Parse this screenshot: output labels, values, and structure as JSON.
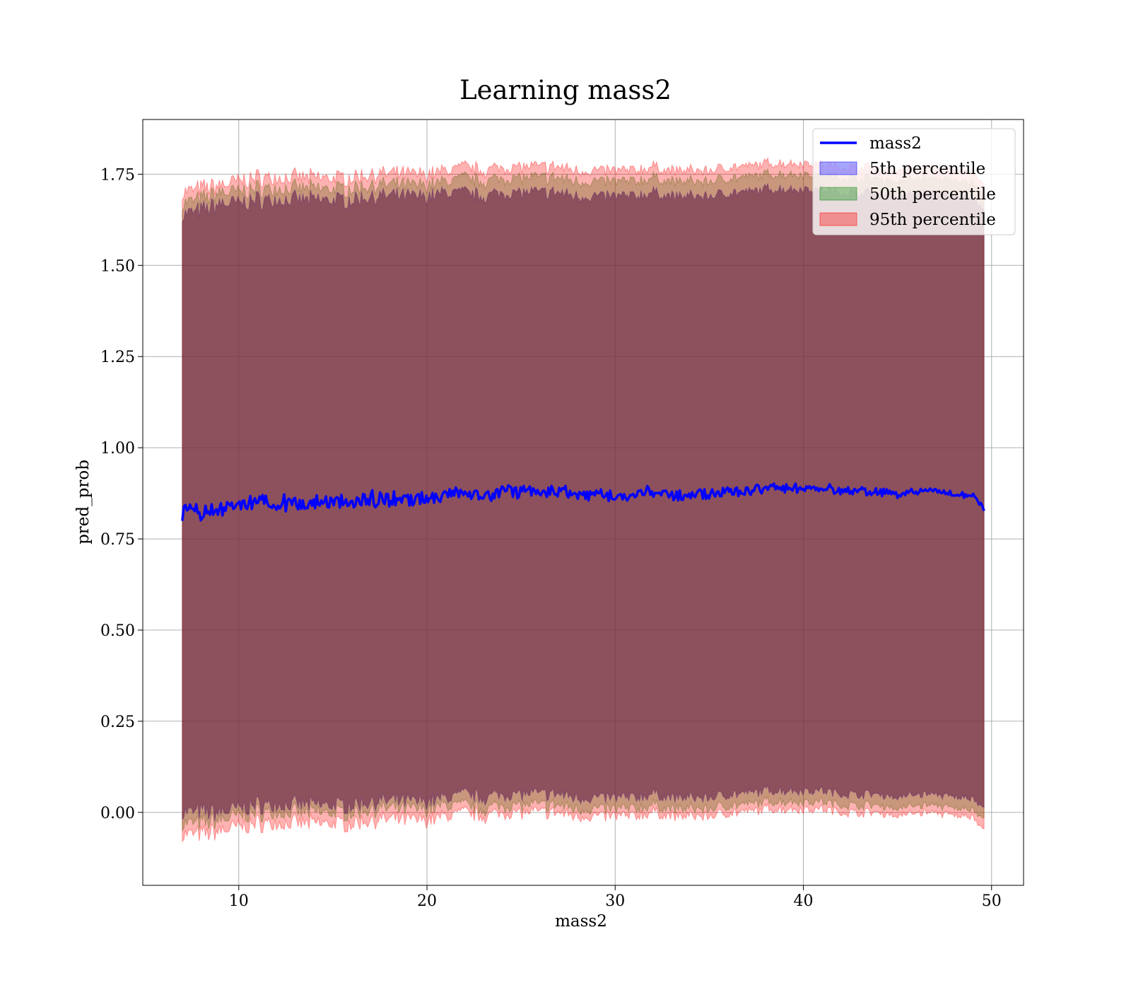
{
  "chart_data": {
    "type": "line",
    "title": "Learning mass2",
    "xlabel": "mass2",
    "ylabel": "pred_prob",
    "xlim": [
      4.9,
      51.7
    ],
    "ylim": [
      -0.2,
      1.9
    ],
    "x_ticks": [
      10,
      20,
      30,
      40,
      50
    ],
    "x_tick_labels": [
      "10",
      "20",
      "30",
      "40",
      "50"
    ],
    "y_ticks": [
      0.0,
      0.25,
      0.5,
      0.75,
      1.0,
      1.25,
      1.5,
      1.75
    ],
    "y_tick_labels": [
      "0.00",
      "0.25",
      "0.50",
      "0.75",
      "1.00",
      "1.25",
      "1.50",
      "1.75"
    ],
    "grid": true,
    "legend_position": "top-right",
    "colors": {
      "line": "#0000ff",
      "band_5th": "#0000ff",
      "band_50th": "#008000",
      "band_95th": "#ff0000"
    },
    "line_series": {
      "name": "mass2",
      "x": [
        7.0,
        8.0,
        9.0,
        10.0,
        11.0,
        12.0,
        13.0,
        14.0,
        15.0,
        16.0,
        17.0,
        18.0,
        19.0,
        20.0,
        21.0,
        22.0,
        23.0,
        24.0,
        25.0,
        26.0,
        27.0,
        28.0,
        29.0,
        30.0,
        31.0,
        32.0,
        33.0,
        34.0,
        35.0,
        36.0,
        37.0,
        38.0,
        39.0,
        40.0,
        41.0,
        42.0,
        43.0,
        44.0,
        45.0,
        46.0,
        47.0,
        48.0,
        49.0,
        49.6
      ],
      "y": [
        0.82,
        0.82,
        0.83,
        0.84,
        0.85,
        0.85,
        0.85,
        0.85,
        0.85,
        0.85,
        0.86,
        0.86,
        0.86,
        0.86,
        0.87,
        0.88,
        0.87,
        0.88,
        0.88,
        0.88,
        0.88,
        0.87,
        0.87,
        0.87,
        0.87,
        0.88,
        0.87,
        0.87,
        0.87,
        0.88,
        0.88,
        0.89,
        0.89,
        0.89,
        0.89,
        0.88,
        0.88,
        0.88,
        0.87,
        0.88,
        0.88,
        0.87,
        0.87,
        0.83
      ]
    },
    "bands": [
      {
        "name": "5th percentile",
        "color": "#0000ff",
        "upper": [
          1.64,
          1.65,
          1.67,
          1.67,
          1.68,
          1.68,
          1.68,
          1.68,
          1.68,
          1.68,
          1.69,
          1.69,
          1.69,
          1.69,
          1.7,
          1.7,
          1.69,
          1.7,
          1.7,
          1.7,
          1.7,
          1.69,
          1.69,
          1.69,
          1.69,
          1.7,
          1.69,
          1.69,
          1.69,
          1.7,
          1.7,
          1.71,
          1.71,
          1.71,
          1.71,
          1.7,
          1.7,
          1.7,
          1.69,
          1.7,
          1.7,
          1.69,
          1.69,
          1.65
        ],
        "lower": [
          0.0,
          0.0,
          0.0,
          0.01,
          0.02,
          0.02,
          0.02,
          0.02,
          0.02,
          0.02,
          0.03,
          0.03,
          0.03,
          0.03,
          0.04,
          0.05,
          0.04,
          0.05,
          0.05,
          0.05,
          0.05,
          0.04,
          0.04,
          0.04,
          0.04,
          0.05,
          0.04,
          0.04,
          0.04,
          0.05,
          0.05,
          0.06,
          0.06,
          0.06,
          0.06,
          0.05,
          0.05,
          0.05,
          0.04,
          0.05,
          0.05,
          0.04,
          0.04,
          0.01
        ]
      },
      {
        "name": "50th percentile",
        "color": "#008000",
        "upper": [
          1.67,
          1.68,
          1.7,
          1.7,
          1.71,
          1.71,
          1.71,
          1.71,
          1.71,
          1.71,
          1.72,
          1.72,
          1.72,
          1.72,
          1.73,
          1.74,
          1.73,
          1.74,
          1.74,
          1.74,
          1.74,
          1.73,
          1.73,
          1.73,
          1.73,
          1.74,
          1.73,
          1.73,
          1.73,
          1.74,
          1.74,
          1.75,
          1.75,
          1.75,
          1.75,
          1.74,
          1.74,
          1.74,
          1.73,
          1.74,
          1.74,
          1.73,
          1.73,
          1.69
        ],
        "lower": [
          -0.03,
          -0.03,
          -0.02,
          -0.01,
          0.0,
          0.0,
          0.0,
          0.0,
          0.0,
          0.0,
          0.01,
          0.01,
          0.01,
          0.01,
          0.02,
          0.02,
          0.01,
          0.02,
          0.02,
          0.02,
          0.02,
          0.01,
          0.01,
          0.01,
          0.01,
          0.02,
          0.01,
          0.01,
          0.01,
          0.02,
          0.02,
          0.03,
          0.03,
          0.03,
          0.03,
          0.02,
          0.02,
          0.02,
          0.01,
          0.02,
          0.02,
          0.01,
          0.01,
          -0.02
        ]
      },
      {
        "name": "95th percentile",
        "color": "#ff0000",
        "upper": [
          1.7,
          1.71,
          1.72,
          1.73,
          1.74,
          1.74,
          1.74,
          1.74,
          1.74,
          1.74,
          1.75,
          1.75,
          1.75,
          1.75,
          1.76,
          1.77,
          1.76,
          1.77,
          1.77,
          1.77,
          1.77,
          1.76,
          1.76,
          1.76,
          1.76,
          1.77,
          1.76,
          1.76,
          1.76,
          1.77,
          1.77,
          1.78,
          1.78,
          1.78,
          1.78,
          1.77,
          1.77,
          1.77,
          1.76,
          1.77,
          1.77,
          1.76,
          1.76,
          1.72
        ],
        "lower": [
          -0.06,
          -0.06,
          -0.05,
          -0.04,
          -0.03,
          -0.03,
          -0.03,
          -0.03,
          -0.03,
          -0.03,
          -0.02,
          -0.02,
          -0.02,
          -0.02,
          -0.01,
          0.0,
          -0.01,
          0.0,
          0.0,
          0.0,
          0.0,
          -0.01,
          -0.01,
          -0.01,
          -0.01,
          0.0,
          -0.01,
          -0.01,
          -0.01,
          0.0,
          0.0,
          0.01,
          0.01,
          0.01,
          0.01,
          0.0,
          0.0,
          0.0,
          -0.01,
          0.0,
          0.0,
          -0.01,
          -0.01,
          -0.05
        ]
      }
    ],
    "legend": [
      {
        "label": "mass2",
        "kind": "line",
        "color": "#0000ff"
      },
      {
        "label": "5th percentile",
        "kind": "patch",
        "color": "#0000ff"
      },
      {
        "label": "50th percentile",
        "kind": "patch",
        "color": "#008000"
      },
      {
        "label": "95th percentile",
        "kind": "patch",
        "color": "#ff0000"
      }
    ]
  }
}
